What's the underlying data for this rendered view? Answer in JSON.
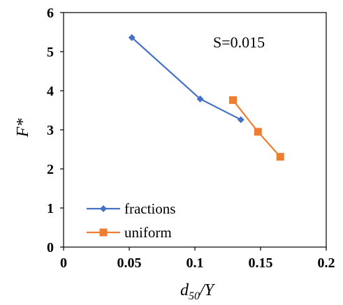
{
  "chart_data": {
    "type": "line",
    "title": "",
    "annotation": "S=0.015",
    "xlabel": {
      "main": "d",
      "sub": "50",
      "tail": "/Y"
    },
    "ylabel": "F*",
    "xlim": [
      0,
      0.2
    ],
    "ylim": [
      0,
      6
    ],
    "x_ticks": [
      0,
      0.05,
      0.1,
      0.15,
      0.2
    ],
    "x_tick_labels": [
      "0",
      "0.05",
      "0.1",
      "0.15",
      "0.2"
    ],
    "y_ticks": [
      0,
      1,
      2,
      3,
      4,
      5,
      6
    ],
    "y_tick_labels": [
      "0",
      "1",
      "2",
      "3",
      "4",
      "5",
      "6"
    ],
    "grid": false,
    "legend_position": "bottom-left",
    "series": [
      {
        "name": "fractions",
        "color": "#4472C4",
        "marker": "diamond",
        "x": [
          0.052,
          0.104,
          0.135
        ],
        "y": [
          5.36,
          3.79,
          3.26
        ]
      },
      {
        "name": "uniform",
        "color": "#ED7D31",
        "marker": "square",
        "x": [
          0.129,
          0.148,
          0.165
        ],
        "y": [
          3.76,
          2.95,
          2.31
        ]
      }
    ]
  }
}
